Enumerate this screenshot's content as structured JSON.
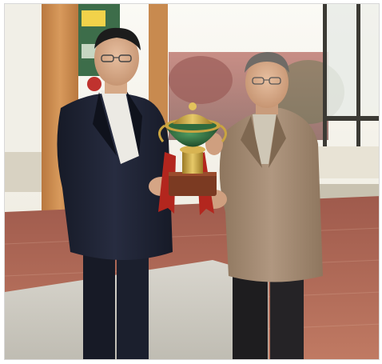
{
  "image": {
    "kind": "photograph",
    "subjects": [
      "man-in-dark-suit",
      "man-in-tan-jacket",
      "trophy-cup"
    ]
  },
  "palette": {
    "window_light": "#f4f2ea",
    "wall_wood": "#c98a4e",
    "carpet": "#b06a58",
    "dark_suit": "#1f2333",
    "tan_jacket": "#a88e73",
    "trophy_green": "#2f6b3d",
    "trophy_gold": "#c9a441",
    "ribbon_red": "#b3261e"
  }
}
